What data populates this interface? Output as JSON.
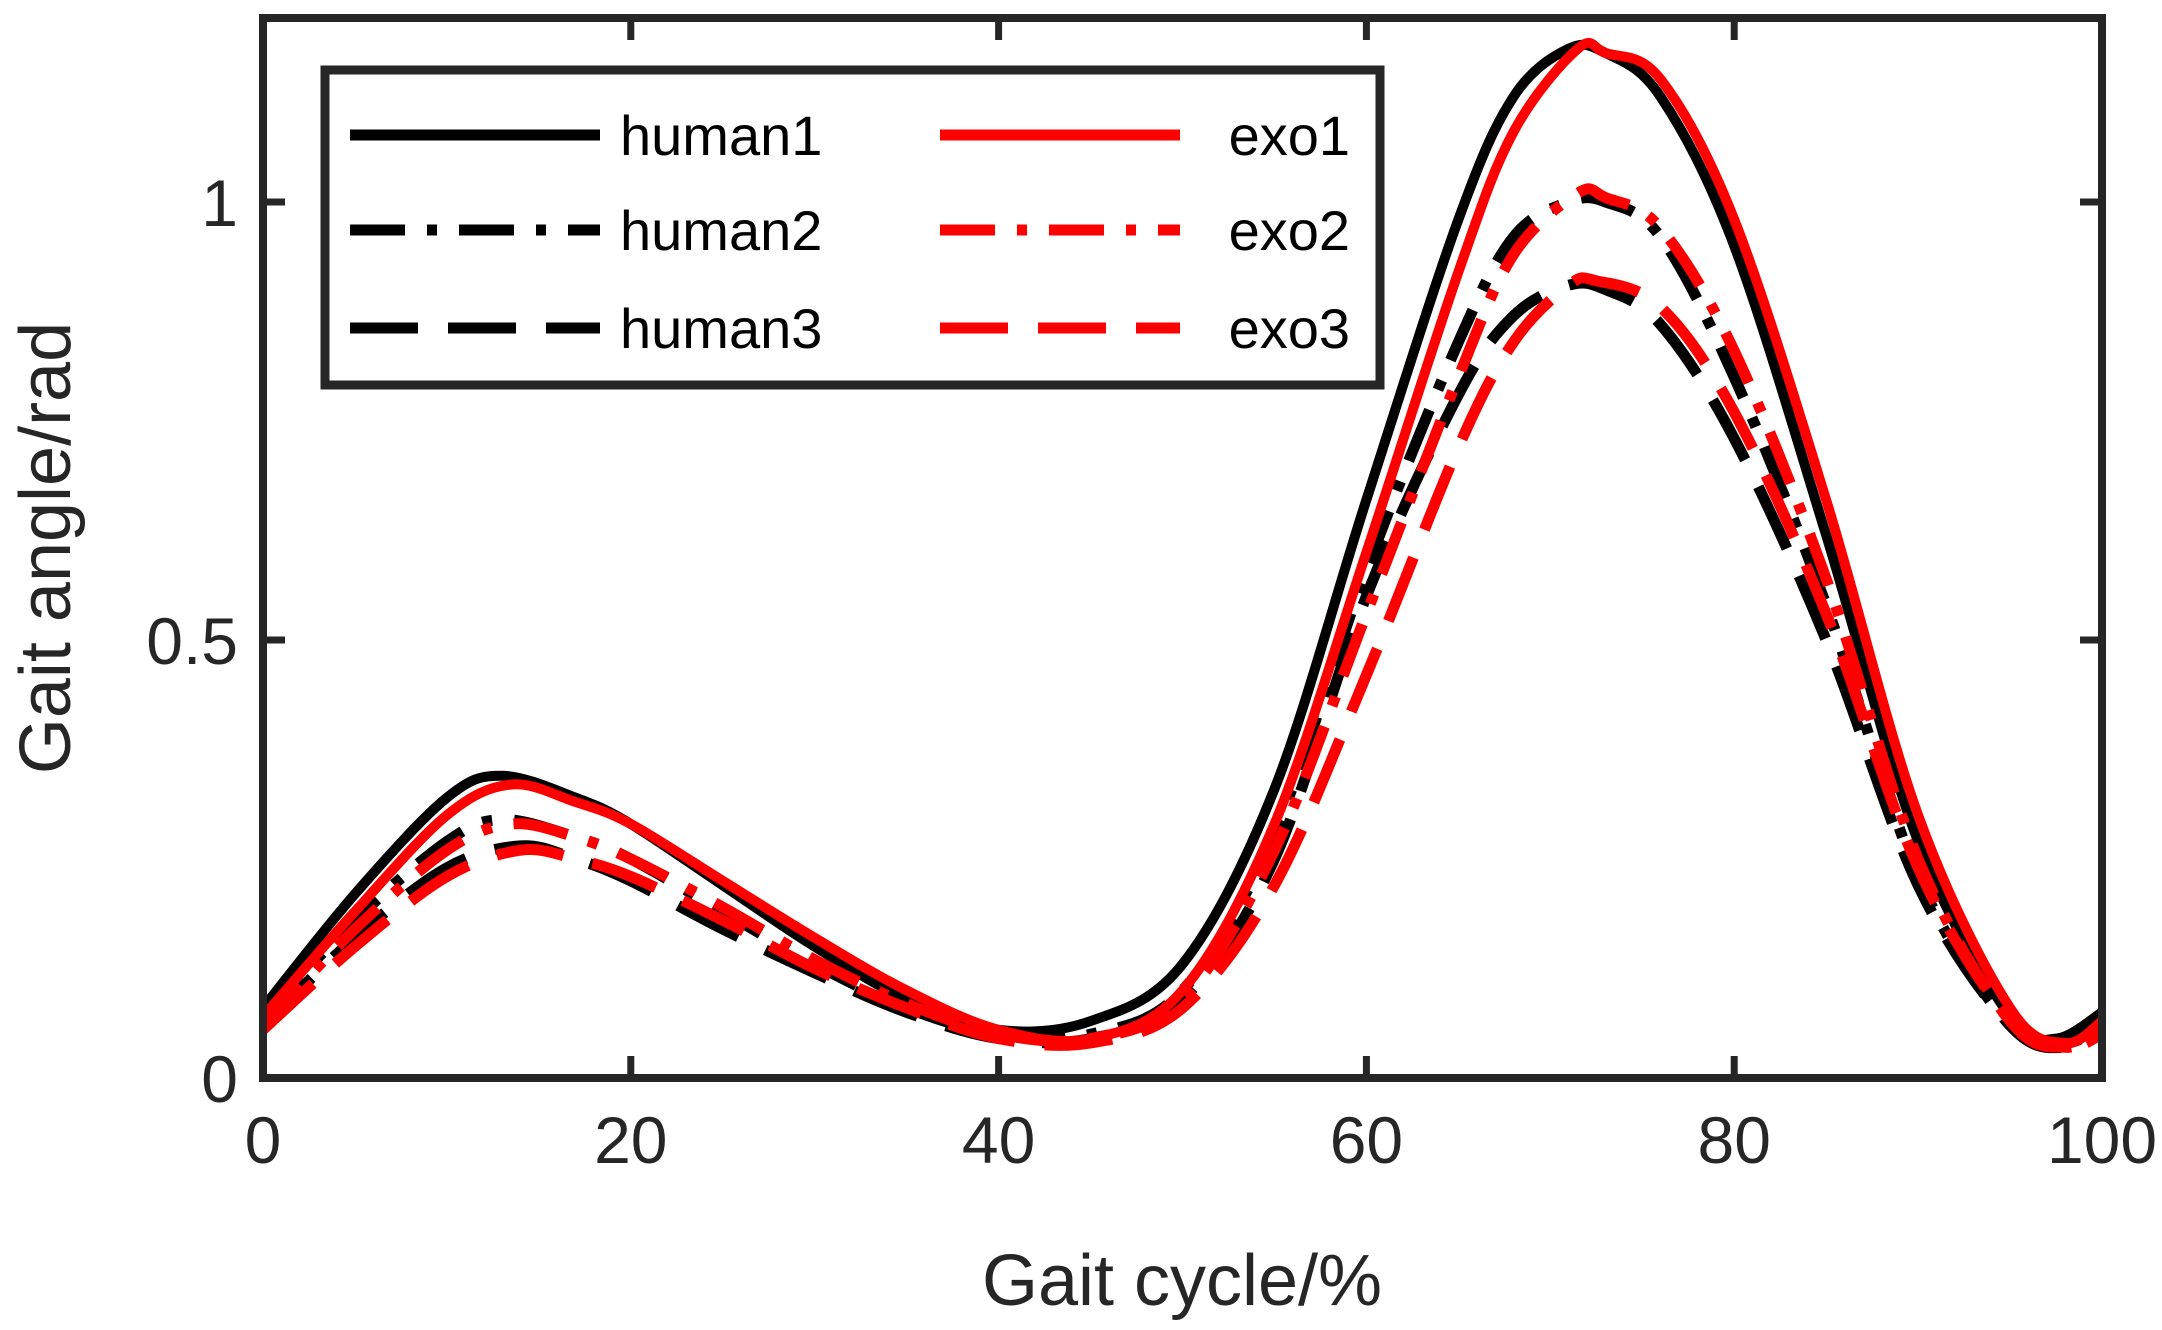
{
  "chart_data": {
    "type": "line",
    "xlabel": "Gait cycle/%",
    "ylabel": "Gait angle/rad",
    "xlim": [
      0,
      100
    ],
    "ylim": [
      0,
      1.21
    ],
    "xticks": [
      0,
      20,
      40,
      60,
      80,
      100
    ],
    "xtick_labels": [
      "0",
      "20",
      "40",
      "60",
      "80",
      "100"
    ],
    "yticks": [
      0,
      0.5,
      1
    ],
    "ytick_labels": [
      "0",
      "0.5",
      "1"
    ],
    "grid": false,
    "legend_position": "top-left",
    "series": [
      {
        "name": "human1",
        "color": "#000000",
        "dash": "solid",
        "x": [
          0,
          5,
          10,
          13,
          17,
          20,
          25,
          30,
          35,
          40,
          45,
          50,
          55,
          60,
          65,
          68,
          71,
          73,
          76,
          80,
          85,
          90,
          95,
          97.5,
          100
        ],
        "y": [
          0.08,
          0.21,
          0.32,
          0.345,
          0.32,
          0.29,
          0.22,
          0.15,
          0.09,
          0.055,
          0.065,
          0.13,
          0.33,
          0.66,
          0.98,
          1.12,
          1.175,
          1.17,
          1.12,
          0.95,
          0.62,
          0.27,
          0.07,
          0.045,
          0.075
        ]
      },
      {
        "name": "human2",
        "color": "#000000",
        "dash": "dashdot",
        "x": [
          0,
          5,
          10,
          13,
          17,
          20,
          25,
          30,
          35,
          40,
          45,
          50,
          55,
          60,
          65,
          68,
          71,
          73,
          76,
          80,
          85,
          90,
          95,
          98,
          100
        ],
        "y": [
          0.07,
          0.18,
          0.27,
          0.295,
          0.275,
          0.25,
          0.19,
          0.13,
          0.08,
          0.05,
          0.05,
          0.1,
          0.28,
          0.58,
          0.84,
          0.96,
          1.0,
          1.0,
          0.96,
          0.8,
          0.54,
          0.23,
          0.06,
          0.04,
          0.06
        ]
      },
      {
        "name": "human3",
        "color": "#000000",
        "dash": "dash",
        "x": [
          0,
          5,
          10,
          14,
          17,
          20,
          25,
          30,
          35,
          40,
          45,
          50,
          55,
          60,
          65,
          68,
          71,
          73,
          76,
          80,
          85,
          90,
          95,
          98,
          100
        ],
        "y": [
          0.06,
          0.16,
          0.24,
          0.265,
          0.25,
          0.225,
          0.17,
          0.12,
          0.075,
          0.045,
          0.045,
          0.09,
          0.25,
          0.55,
          0.78,
          0.87,
          0.905,
          0.9,
          0.86,
          0.73,
          0.5,
          0.22,
          0.06,
          0.035,
          0.06
        ]
      },
      {
        "name": "exo1",
        "color": "#ff0000",
        "dash": "solid",
        "x": [
          0,
          5,
          10,
          13.5,
          17,
          20,
          25,
          30,
          35,
          40,
          45,
          50,
          55,
          60,
          65,
          68,
          71.5,
          73,
          76,
          80,
          85,
          90,
          95,
          98,
          100
        ],
        "y": [
          0.07,
          0.19,
          0.3,
          0.335,
          0.315,
          0.29,
          0.225,
          0.16,
          0.1,
          0.055,
          0.045,
          0.1,
          0.29,
          0.6,
          0.92,
          1.08,
          1.175,
          1.17,
          1.14,
          0.98,
          0.66,
          0.3,
          0.08,
          0.04,
          0.065
        ]
      },
      {
        "name": "exo2",
        "color": "#ff0000",
        "dash": "dashdot",
        "x": [
          0,
          5,
          10,
          13.5,
          17,
          20,
          25,
          30,
          35,
          40,
          45,
          50,
          55,
          60,
          65,
          68,
          71.5,
          73,
          76,
          80,
          85,
          90,
          95,
          98,
          100
        ],
        "y": [
          0.06,
          0.17,
          0.26,
          0.29,
          0.275,
          0.25,
          0.195,
          0.135,
          0.085,
          0.05,
          0.045,
          0.09,
          0.26,
          0.53,
          0.8,
          0.94,
          1.01,
          1.005,
          0.97,
          0.83,
          0.57,
          0.25,
          0.065,
          0.035,
          0.055
        ]
      },
      {
        "name": "exo3",
        "color": "#ff0000",
        "dash": "dash",
        "x": [
          0,
          5,
          10,
          14,
          17,
          20,
          25,
          30,
          35,
          40,
          45,
          50,
          55,
          60,
          65,
          68,
          71,
          72.5,
          76,
          80,
          85,
          90,
          95,
          98,
          100
        ],
        "y": [
          0.055,
          0.15,
          0.23,
          0.26,
          0.25,
          0.23,
          0.18,
          0.125,
          0.08,
          0.045,
          0.04,
          0.08,
          0.22,
          0.46,
          0.72,
          0.84,
          0.905,
          0.91,
          0.88,
          0.76,
          0.53,
          0.24,
          0.065,
          0.035,
          0.05
        ]
      }
    ]
  }
}
